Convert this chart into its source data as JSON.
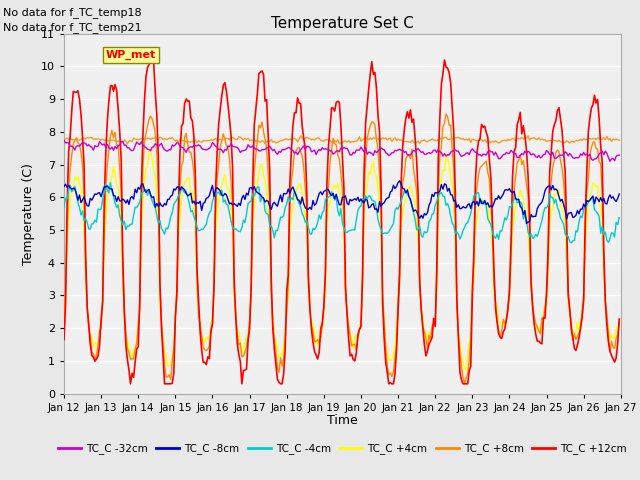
{
  "title": "Temperature Set C",
  "xlabel": "Time",
  "ylabel": "Temperature (C)",
  "ylim": [
    0.0,
    11.0
  ],
  "yticks": [
    0.0,
    1.0,
    2.0,
    3.0,
    4.0,
    5.0,
    6.0,
    7.0,
    8.0,
    9.0,
    10.0,
    11.0
  ],
  "note1": "No data for f_TC_temp18",
  "note2": "No data for f_TC_temp21",
  "wp_met_label": "WP_met",
  "legend_entries": [
    "TC_C -32cm",
    "TC_C -8cm",
    "TC_C -4cm",
    "TC_C +4cm",
    "TC_C +8cm",
    "TC_C +12cm"
  ],
  "legend_colors": [
    "#cc00cc",
    "#0000cc",
    "#00cccc",
    "#ffff00",
    "#ff8800",
    "#ff0000"
  ],
  "wp_met_color": "#ff8800",
  "bg_color": "#e8e8e8",
  "plot_bg": "#f0f0f0",
  "n_points": 360,
  "xtick_positions": [
    0,
    24,
    48,
    72,
    96,
    120,
    144,
    168,
    192,
    216,
    240,
    264,
    288,
    312,
    336,
    360
  ],
  "xtick_labels": [
    "Jan 12",
    "Jan 13",
    "Jan 14",
    "Jan 15",
    "Jan 16",
    "Jan 17",
    "Jan 18",
    "Jan 19",
    "Jan 20",
    "Jan 21",
    "Jan 22",
    "Jan 23",
    "Jan 24",
    "Jan 25",
    "Jan 26",
    "Jan 27"
  ]
}
